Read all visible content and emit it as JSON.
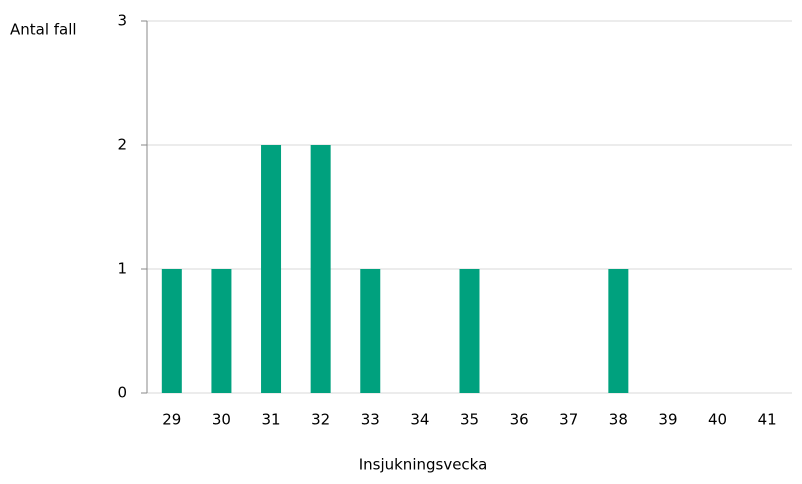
{
  "chart_data": {
    "type": "bar",
    "y_label": "Antal fall",
    "x_label": "Insjukningsvecka",
    "categories": [
      "29",
      "30",
      "31",
      "32",
      "33",
      "34",
      "35",
      "36",
      "37",
      "38",
      "39",
      "40",
      "41"
    ],
    "values": [
      1,
      1,
      2,
      2,
      1,
      0,
      1,
      0,
      0,
      1,
      0,
      0,
      0
    ],
    "color": "#00a17e",
    "ylim": [
      0,
      3
    ],
    "yticks": [
      0,
      1,
      2,
      3
    ],
    "grid": true
  }
}
